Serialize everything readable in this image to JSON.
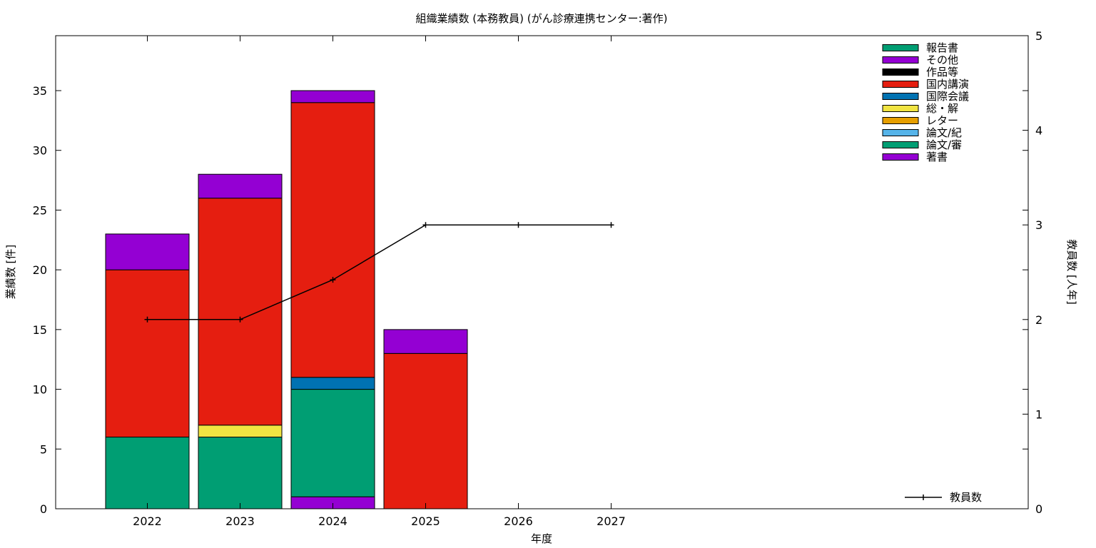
{
  "chart_data": {
    "type": "bar",
    "stacked": true,
    "title": "組織業績数 (本務教員) (がん診療連携センター:著作)",
    "xlabel": "年度",
    "ylabel": "業績数 [件]",
    "y2label": "教員数 [人年]",
    "categories": [
      "2022",
      "2023",
      "2024",
      "2025",
      "2026",
      "2027"
    ],
    "ylim": [
      0,
      39.6
    ],
    "y2lim": [
      0,
      5
    ],
    "yticks": [
      0,
      5,
      10,
      15,
      20,
      25,
      30,
      35
    ],
    "y2ticks": [
      0,
      1,
      2,
      3,
      4,
      5
    ],
    "grid": false,
    "legend_position": "top-right",
    "series": [
      {
        "name": "著書",
        "color": "#9400d3",
        "values": [
          0,
          0,
          1,
          0,
          0,
          0
        ]
      },
      {
        "name": "論文/審",
        "color": "#009e73",
        "values": [
          6,
          6,
          9,
          0,
          0,
          0
        ]
      },
      {
        "name": "論文/紀",
        "color": "#56b4e9",
        "values": [
          0,
          0,
          0,
          0,
          0,
          0
        ]
      },
      {
        "name": "レター",
        "color": "#e69f00",
        "values": [
          0,
          0,
          0,
          0,
          0,
          0
        ]
      },
      {
        "name": "総・解",
        "color": "#f0e442",
        "values": [
          0,
          1,
          0,
          0,
          0,
          0
        ]
      },
      {
        "name": "国際会議",
        "color": "#0072b2",
        "values": [
          0,
          0,
          1,
          0,
          0,
          0
        ]
      },
      {
        "name": "国内講演",
        "color": "#e51e10",
        "values": [
          14,
          19,
          23,
          13,
          0,
          0
        ]
      },
      {
        "name": "作品等",
        "color": "#000000",
        "values": [
          0,
          0,
          0,
          0,
          0,
          0
        ]
      },
      {
        "name": "その他",
        "color": "#9400d3",
        "values": [
          3,
          2,
          1,
          2,
          0,
          0
        ]
      },
      {
        "name": "報告書",
        "color": "#009e73",
        "values": [
          0,
          0,
          0,
          0,
          0,
          0
        ]
      }
    ],
    "legend_order": [
      "報告書",
      "その他",
      "作品等",
      "国内講演",
      "国際会議",
      "総・解",
      "レター",
      "論文/紀",
      "論文/審",
      "著書"
    ],
    "line_series": {
      "name": "教員数",
      "axis": "y2",
      "color": "#000000",
      "values": [
        2,
        2,
        2.42,
        3,
        3,
        3
      ]
    }
  }
}
